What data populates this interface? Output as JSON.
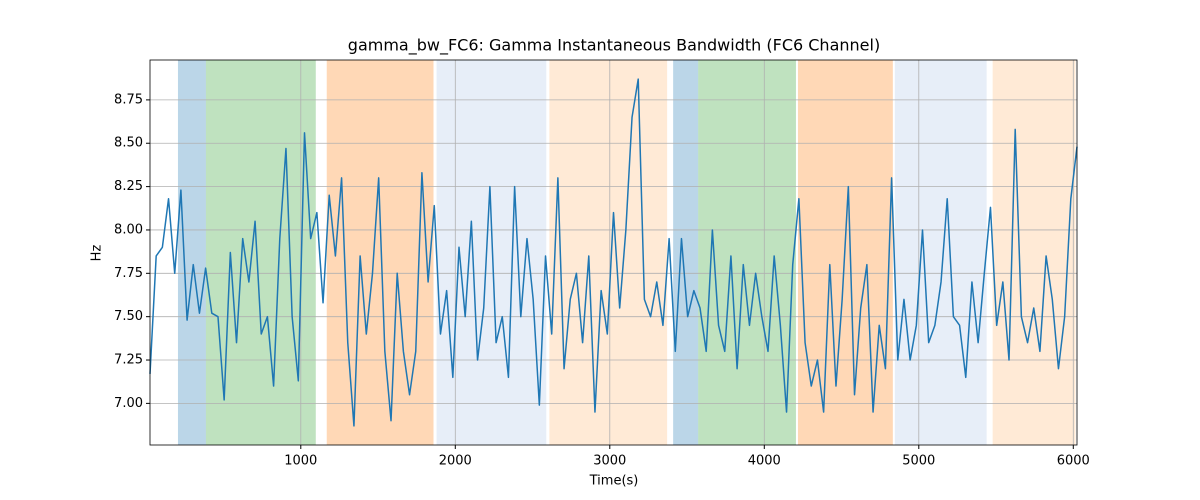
{
  "chart_data": {
    "type": "line",
    "title": "gamma_bw_FC6: Gamma Instantaneous Bandwidth (FC6 Channel)",
    "xlabel": "Time(s)",
    "ylabel": "Hz",
    "xlim": [
      24,
      6024
    ],
    "ylim": [
      6.76,
      8.98
    ],
    "xticks": [
      1000,
      2000,
      3000,
      4000,
      5000,
      6000
    ],
    "yticks": [
      {
        "value": 7,
        "label": "7.00"
      },
      7.25,
      {
        "value": 7.5,
        "label": "7.50"
      },
      7.75,
      {
        "value": 8,
        "label": "8.00"
      },
      8.25,
      {
        "value": 8.5,
        "label": "8.50"
      },
      8.75
    ],
    "grid": true,
    "spans": [
      {
        "start": 205,
        "end": 386,
        "color": "#1f77b4",
        "opacity": 0.3
      },
      {
        "start": 386,
        "end": 1097,
        "color": "#2ca02c",
        "opacity": 0.3
      },
      {
        "start": 1168,
        "end": 1859,
        "color": "#ff7f0e",
        "opacity": 0.3
      },
      {
        "start": 1879,
        "end": 2589,
        "color": "#aec7e8",
        "opacity": 0.3
      },
      {
        "start": 2609,
        "end": 3371,
        "color": "#ffbb78",
        "opacity": 0.3
      },
      {
        "start": 3410,
        "end": 3572,
        "color": "#1f77b4",
        "opacity": 0.3
      },
      {
        "start": 3572,
        "end": 4205,
        "color": "#2ca02c",
        "opacity": 0.3
      },
      {
        "start": 4218,
        "end": 4832,
        "color": "#ff7f0e",
        "opacity": 0.3
      },
      {
        "start": 4845,
        "end": 5439,
        "color": "#aec7e8",
        "opacity": 0.3
      },
      {
        "start": 5478,
        "end": 6014,
        "color": "#ffbb78",
        "opacity": 0.3
      }
    ],
    "x": [
      24,
      64,
      104,
      144,
      184,
      224,
      264,
      304,
      344,
      384,
      424,
      464,
      504,
      544,
      584,
      624,
      664,
      704,
      744,
      784,
      824,
      864,
      904,
      944,
      984,
      1024,
      1064,
      1104,
      1144,
      1184,
      1224,
      1264,
      1304,
      1344,
      1384,
      1424,
      1464,
      1504,
      1544,
      1584,
      1624,
      1664,
      1704,
      1744,
      1784,
      1824,
      1864,
      1904,
      1944,
      1984,
      2024,
      2064,
      2104,
      2144,
      2184,
      2224,
      2264,
      2304,
      2344,
      2384,
      2424,
      2464,
      2504,
      2544,
      2584,
      2624,
      2664,
      2704,
      2744,
      2784,
      2824,
      2864,
      2904,
      2944,
      2984,
      3024,
      3064,
      3104,
      3144,
      3184,
      3224,
      3264,
      3304,
      3344,
      3384,
      3424,
      3464,
      3504,
      3544,
      3584,
      3624,
      3664,
      3704,
      3744,
      3784,
      3824,
      3864,
      3904,
      3944,
      3984,
      4024,
      4064,
      4104,
      4144,
      4184,
      4224,
      4264,
      4304,
      4344,
      4384,
      4424,
      4464,
      4504,
      4544,
      4584,
      4624,
      4664,
      4704,
      4744,
      4784,
      4824,
      4864,
      4904,
      4944,
      4984,
      5024,
      5064,
      5104,
      5144,
      5184,
      5224,
      5264,
      5304,
      5344,
      5384,
      5424,
      5464,
      5504,
      5544,
      5584,
      5624,
      5664,
      5704,
      5744,
      5784,
      5824,
      5864,
      5904,
      5944,
      5984,
      6024
    ],
    "series": [
      {
        "color": "#1f77b4",
        "values": [
          7.17,
          7.85,
          7.9,
          8.18,
          7.75,
          8.23,
          7.48,
          7.8,
          7.52,
          7.78,
          7.52,
          7.5,
          7.02,
          7.87,
          7.35,
          7.95,
          7.7,
          8.05,
          7.4,
          7.5,
          7.1,
          7.95,
          8.47,
          7.5,
          7.13,
          8.56,
          7.95,
          8.1,
          7.58,
          8.2,
          7.85,
          8.3,
          7.35,
          6.87,
          7.85,
          7.4,
          7.75,
          8.3,
          7.3,
          6.9,
          7.75,
          7.3,
          7.05,
          7.3,
          8.33,
          7.7,
          8.14,
          7.4,
          7.65,
          7.15,
          7.9,
          7.5,
          8.05,
          7.25,
          7.55,
          8.25,
          7.35,
          7.5,
          7.15,
          8.25,
          7.5,
          7.95,
          7.6,
          6.99,
          7.85,
          7.4,
          8.3,
          7.2,
          7.6,
          7.75,
          7.35,
          7.85,
          6.95,
          7.65,
          7.4,
          8.1,
          7.55,
          8.0,
          8.65,
          8.87,
          7.6,
          7.5,
          7.7,
          7.45,
          7.95,
          7.3,
          7.95,
          7.5,
          7.65,
          7.55,
          7.3,
          8.0,
          7.45,
          7.3,
          7.85,
          7.2,
          7.8,
          7.45,
          7.75,
          7.5,
          7.3,
          7.85,
          7.45,
          6.95,
          7.8,
          8.18,
          7.35,
          7.1,
          7.25,
          6.95,
          7.8,
          7.1,
          7.6,
          8.25,
          7.05,
          7.55,
          7.8,
          6.95,
          7.45,
          7.2,
          8.3,
          7.25,
          7.6,
          7.25,
          7.45,
          8.0,
          7.35,
          7.45,
          7.7,
          8.18,
          7.5,
          7.45,
          7.15,
          7.7,
          7.35,
          7.75,
          8.13,
          7.45,
          7.7,
          7.25,
          8.58,
          7.5,
          7.35,
          7.55,
          7.3,
          7.85,
          7.6,
          7.2,
          7.5,
          8.18,
          8.48
        ]
      }
    ]
  }
}
